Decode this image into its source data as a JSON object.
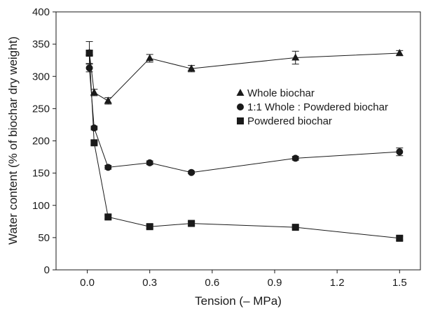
{
  "chart_data": {
    "type": "line",
    "xlabel": "Tension (– MPa)",
    "ylabel": "Water content (% of biochar dry weight)",
    "xlim": [
      -0.15,
      1.6
    ],
    "ylim": [
      0,
      400
    ],
    "xticks": [
      "0.0",
      "0.3",
      "0.6",
      "0.9",
      "1.2",
      "1.5"
    ],
    "xtick_values": [
      0.0,
      0.3,
      0.6,
      0.9,
      1.2,
      1.5
    ],
    "yticks": [
      "0",
      "50",
      "100",
      "150",
      "200",
      "250",
      "300",
      "350",
      "400"
    ],
    "ytick_values": [
      0,
      50,
      100,
      150,
      200,
      250,
      300,
      350,
      400
    ],
    "grid": false,
    "legend_position": "right-upper",
    "series": [
      {
        "name": "Whole biochar",
        "marker": "triangle",
        "x": [
          0.01,
          0.033,
          0.1,
          0.3,
          0.5,
          1.0,
          1.5
        ],
        "y": [
          337,
          275,
          262,
          328,
          312,
          329,
          336
        ],
        "err": [
          17,
          5,
          5,
          6,
          5,
          10,
          4
        ]
      },
      {
        "name": "1:1 Whole : Powdered biochar",
        "marker": "circle",
        "x": [
          0.01,
          0.033,
          0.1,
          0.3,
          0.5,
          1.0,
          1.5
        ],
        "y": [
          313,
          220,
          159,
          166,
          151,
          173,
          183
        ],
        "err": [
          6,
          3,
          3,
          3,
          2,
          3,
          6
        ]
      },
      {
        "name": "Powdered biochar",
        "marker": "square",
        "x": [
          0.01,
          0.033,
          0.1,
          0.3,
          0.5,
          1.0,
          1.5
        ],
        "y": [
          336,
          197,
          82,
          67,
          72,
          66,
          49
        ],
        "err": [
          4,
          3,
          3,
          3,
          3,
          2,
          3
        ]
      }
    ]
  }
}
